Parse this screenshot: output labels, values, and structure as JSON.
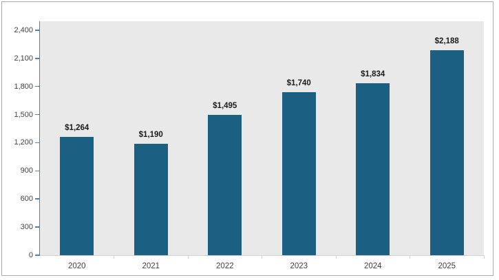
{
  "chart_data": {
    "type": "bar",
    "title": "",
    "xlabel": "",
    "ylabel": "",
    "categories": [
      "2020",
      "2021",
      "2022",
      "2023",
      "2024",
      "2025"
    ],
    "values": [
      1264,
      1190,
      1495,
      1740,
      1834,
      2188
    ],
    "value_labels": [
      "$1,264",
      "$1,190",
      "$1,495",
      "$1,740",
      "$1,834",
      "$2,188"
    ],
    "y_ticks": [
      {
        "value": 0,
        "label": "0"
      },
      {
        "value": 300,
        "label": "300"
      },
      {
        "value": 600,
        "label": "600"
      },
      {
        "value": 900,
        "label": "900"
      },
      {
        "value": 1200,
        "label": "1,200"
      },
      {
        "value": 1500,
        "label": "1,500"
      },
      {
        "value": 1800,
        "label": "1,800"
      },
      {
        "value": 2100,
        "label": "2,100"
      },
      {
        "value": 2400,
        "label": "2,400"
      }
    ],
    "ylim": [
      0,
      2495
    ],
    "grid": false,
    "legend_position": "none",
    "colors": {
      "bar_fill": "#1b5f82",
      "plot_background": "#e9e9e9",
      "value_axis_line": "#4f81a3",
      "category_axis_line": "#d2d2d2",
      "data_label_text": "#1a1a1a",
      "tick_label_text": "#3f3f3f",
      "frame_border": "#a9a9a9",
      "page_background": "#ffffff"
    }
  }
}
